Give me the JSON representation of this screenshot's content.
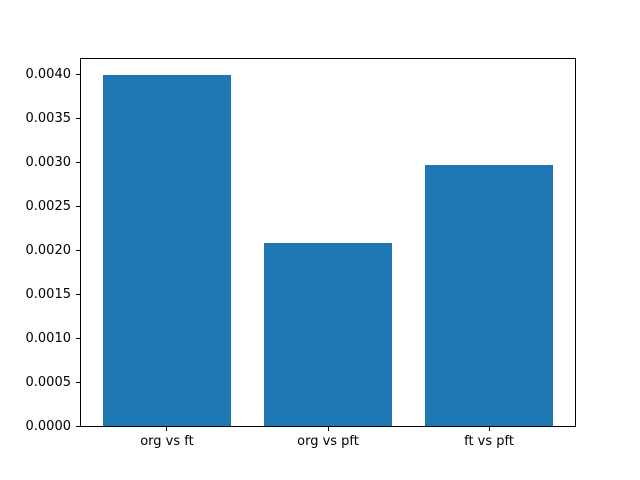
{
  "chart_data": {
    "type": "bar",
    "categories": [
      "org vs ft",
      "org vs pft",
      "ft vs pft"
    ],
    "values": [
      0.00399,
      0.00208,
      0.00296
    ],
    "title": "",
    "xlabel": "",
    "ylabel": "",
    "ylim": [
      0,
      0.00419
    ],
    "yticks": [
      {
        "value": 0.0,
        "label": "0.0000"
      },
      {
        "value": 0.0005,
        "label": "0.0005"
      },
      {
        "value": 0.001,
        "label": "0.0010"
      },
      {
        "value": 0.0015,
        "label": "0.0015"
      },
      {
        "value": 0.002,
        "label": "0.0020"
      },
      {
        "value": 0.0025,
        "label": "0.0025"
      },
      {
        "value": 0.003,
        "label": "0.0030"
      },
      {
        "value": 0.0035,
        "label": "0.0035"
      },
      {
        "value": 0.004,
        "label": "0.0040"
      }
    ],
    "bar_color": "#1f77b4",
    "grid": false,
    "legend": null,
    "background_color": "#ffffff",
    "spine_color": "#000000"
  }
}
